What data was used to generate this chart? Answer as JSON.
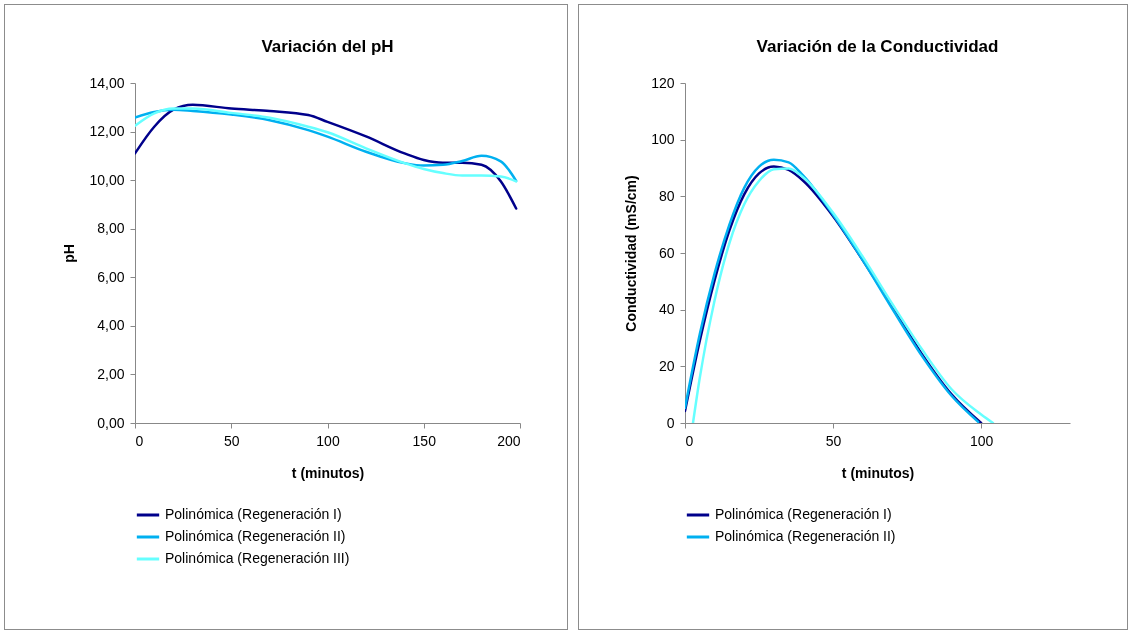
{
  "chart_data": [
    {
      "type": "line",
      "title": "Variación del pH",
      "xlabel": "t (minutos)",
      "ylabel": "pH",
      "xlim": [
        0,
        200
      ],
      "xticks": [
        0,
        50,
        100,
        150,
        200
      ],
      "ylim": [
        0,
        14
      ],
      "yticks": [
        {
          "value": 0,
          "label": "0,00"
        },
        {
          "value": 2,
          "label": "2,00"
        },
        {
          "value": 4,
          "label": "4,00"
        },
        {
          "value": 6,
          "label": "6,00"
        },
        {
          "value": 8,
          "label": "8,00"
        },
        {
          "value": 10,
          "label": "10,00"
        },
        {
          "value": 12,
          "label": "12,00"
        },
        {
          "value": 14,
          "label": "14,00"
        }
      ],
      "legend": "bottom",
      "series": [
        {
          "name": "Polinómica (Regeneración I)",
          "color": "#00008b",
          "x": [
            0,
            10,
            20,
            30,
            50,
            70,
            90,
            100,
            120,
            140,
            150,
            160,
            170,
            180,
            190,
            198
          ],
          "values": [
            11.1,
            12.2,
            12.9,
            13.1,
            12.95,
            12.85,
            12.68,
            12.4,
            11.8,
            11.1,
            10.83,
            10.72,
            10.72,
            10.63,
            9.95,
            8.83
          ]
        },
        {
          "name": "Polinómica (Regeneración II)",
          "color": "#00b0f0",
          "x": [
            0,
            10,
            20,
            30,
            50,
            70,
            90,
            100,
            120,
            140,
            150,
            160,
            170,
            180,
            190,
            198
          ],
          "values": [
            12.58,
            12.81,
            12.9,
            12.85,
            12.7,
            12.47,
            12.06,
            11.79,
            11.17,
            10.7,
            10.6,
            10.63,
            10.79,
            11.0,
            10.77,
            9.97
          ]
        },
        {
          "name": "Polinómica (Regeneración III)",
          "color": "#66ffff",
          "x": [
            0,
            10,
            20,
            30,
            50,
            70,
            90,
            100,
            120,
            140,
            150,
            160,
            170,
            180,
            190,
            198
          ],
          "values": [
            12.24,
            12.75,
            12.95,
            12.95,
            12.77,
            12.57,
            12.2,
            11.97,
            11.31,
            10.7,
            10.46,
            10.29,
            10.19,
            10.19,
            10.15,
            9.95
          ]
        }
      ]
    },
    {
      "type": "line",
      "title": "Variación de la Conductividad",
      "xlabel": "t (minutos)",
      "ylabel": "Conductividad (mS/cm)",
      "xlim": [
        0,
        130
      ],
      "xticks": [
        0,
        50,
        100
      ],
      "ylim": [
        0,
        120
      ],
      "yticks": [
        0,
        20,
        40,
        60,
        80,
        100,
        120
      ],
      "legend": "bottom",
      "series": [
        {
          "name": "Polinómica (Regeneración I)",
          "color": "#00008b",
          "x": [
            0,
            5,
            10,
            15,
            20,
            25,
            30,
            35,
            40,
            50,
            60,
            70,
            80,
            90,
            100
          ],
          "values": [
            4.2,
            29,
            50.4,
            68,
            80.7,
            88.1,
            90.5,
            89.3,
            85.4,
            73,
            57.5,
            41,
            24.3,
            10.1,
            0
          ]
        },
        {
          "name": "Polinómica (Regeneración II)",
          "color": "#00b0f0",
          "x": [
            0,
            5,
            10,
            15,
            20,
            25,
            30,
            35,
            40,
            50,
            60,
            70,
            80,
            90,
            99
          ],
          "values": [
            5.3,
            31.4,
            52.8,
            70,
            83,
            90.5,
            92.9,
            92,
            87.2,
            73.5,
            57.5,
            40.3,
            23.7,
            9.6,
            0.4
          ]
        },
        {
          "color": "#66ffff",
          "x": [
            2.7,
            5,
            10,
            15,
            20,
            25,
            30,
            35,
            40,
            50,
            60,
            70,
            80,
            90,
            100,
            104
          ],
          "values": [
            0,
            16,
            43.3,
            63.5,
            77.2,
            85.4,
            89.6,
            89.8,
            86.6,
            74.2,
            58.7,
            42,
            26,
            11.9,
            3,
            0
          ]
        }
      ]
    }
  ]
}
